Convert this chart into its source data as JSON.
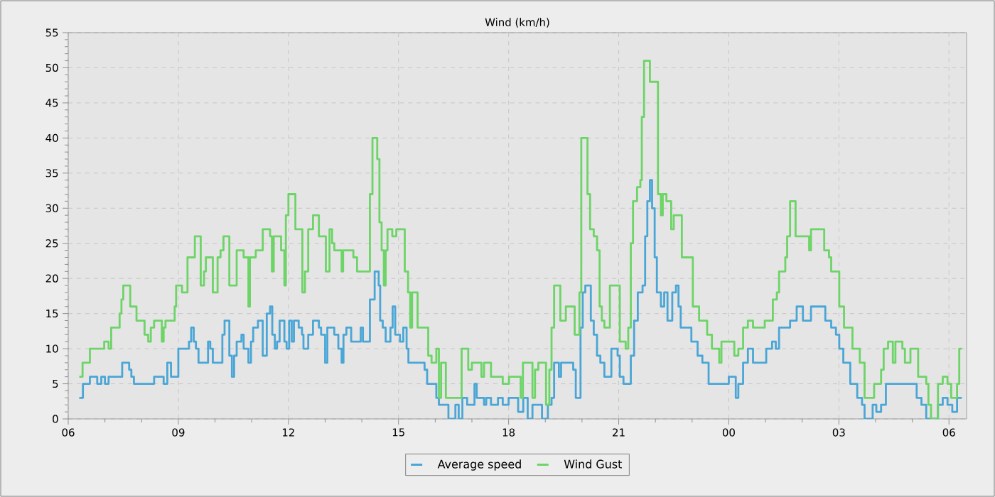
{
  "chart_data": {
    "type": "step",
    "title": "Wind (km/h)",
    "xlim": [
      6,
      30.48
    ],
    "ylim": [
      0,
      55
    ],
    "xticks": [
      {
        "value": 6,
        "label": "06"
      },
      {
        "value": 9,
        "label": "09"
      },
      {
        "value": 12,
        "label": "12"
      },
      {
        "value": 15,
        "label": "15"
      },
      {
        "value": 18,
        "label": "18"
      },
      {
        "value": 21,
        "label": "21"
      },
      {
        "value": 24,
        "label": "00"
      },
      {
        "value": 27,
        "label": "03"
      },
      {
        "value": 30,
        "label": "06"
      }
    ],
    "yticks": [
      0,
      5,
      10,
      15,
      20,
      25,
      30,
      35,
      40,
      45,
      50,
      55
    ],
    "grid": true,
    "legend": "bottom",
    "line_style": "solid",
    "marker": "none",
    "series": [
      {
        "name": "Average speed",
        "color": "#4aa6d6",
        "x": [
          6.3,
          6.4,
          6.59,
          6.79,
          6.9,
          7.0,
          7.1,
          7.47,
          7.66,
          7.72,
          7.79,
          8.34,
          8.6,
          8.7,
          8.8,
          9.0,
          9.29,
          9.35,
          9.42,
          9.48,
          9.55,
          9.81,
          9.87,
          9.94,
          10.2,
          10.26,
          10.39,
          10.46,
          10.52,
          10.59,
          10.72,
          10.78,
          10.91,
          10.98,
          11.04,
          11.17,
          11.3,
          11.41,
          11.5,
          11.56,
          11.63,
          11.69,
          11.76,
          11.89,
          11.95,
          12.02,
          12.09,
          12.15,
          12.28,
          12.37,
          12.41,
          12.54,
          12.67,
          12.83,
          12.89,
          13.0,
          13.06,
          13.25,
          13.36,
          13.45,
          13.5,
          13.58,
          13.71,
          13.97,
          14.03,
          14.22,
          14.35,
          14.46,
          14.5,
          14.57,
          14.65,
          14.78,
          14.84,
          14.91,
          15.04,
          15.13,
          15.22,
          15.27,
          15.71,
          15.78,
          16.03,
          16.1,
          16.36,
          16.55,
          16.64,
          16.74,
          16.87,
          17.07,
          17.13,
          17.33,
          17.39,
          17.52,
          17.71,
          17.84,
          18.0,
          18.26,
          18.4,
          18.52,
          18.65,
          18.91,
          19.07,
          19.17,
          19.24,
          19.37,
          19.43,
          19.76,
          19.83,
          19.96,
          20.02,
          20.09,
          20.24,
          20.32,
          20.41,
          20.5,
          20.61,
          20.8,
          20.97,
          21.03,
          21.13,
          21.33,
          21.42,
          21.52,
          21.65,
          21.72,
          21.78,
          21.85,
          21.91,
          21.98,
          22.04,
          22.15,
          22.24,
          22.33,
          22.46,
          22.56,
          22.63,
          22.69,
          22.98,
          23.15,
          23.28,
          23.45,
          24.0,
          24.19,
          24.26,
          24.39,
          24.52,
          24.66,
          25.02,
          25.18,
          25.28,
          25.37,
          25.67,
          25.85,
          26.02,
          26.24,
          26.63,
          26.79,
          26.92,
          27.01,
          27.12,
          27.31,
          27.5,
          27.63,
          27.7,
          27.92,
          28.02,
          28.15,
          28.28,
          29.12,
          29.25,
          29.38,
          29.7,
          29.83,
          29.96,
          30.09,
          30.22,
          30.35
        ],
        "values": [
          3,
          5,
          6,
          5,
          6,
          5,
          6,
          8,
          7,
          6,
          5,
          6,
          5,
          8,
          6,
          10,
          11,
          13,
          11,
          10,
          8,
          11,
          10,
          8,
          12,
          14,
          9,
          6,
          9,
          11,
          12,
          10,
          8,
          11,
          13,
          14,
          9,
          15,
          16,
          12,
          10,
          11,
          14,
          11,
          10,
          14,
          11,
          14,
          13,
          12,
          10,
          12,
          14,
          13,
          12,
          8,
          13,
          12,
          10,
          8,
          12,
          13,
          11,
          13,
          11,
          17,
          21,
          19,
          14,
          13,
          11,
          13,
          16,
          12,
          11,
          13,
          10,
          8,
          7,
          5,
          3,
          2,
          0,
          2,
          0,
          3,
          2,
          5,
          3,
          2,
          3,
          2,
          3,
          2,
          3,
          1,
          3,
          0,
          2,
          0,
          2,
          3,
          8,
          6,
          8,
          7,
          3,
          13,
          18,
          19,
          14,
          12,
          9,
          8,
          6,
          10,
          9,
          6,
          5,
          9,
          14,
          18,
          19,
          26,
          31,
          34,
          30,
          23,
          18,
          16,
          18,
          14,
          18,
          19,
          16,
          13,
          11,
          9,
          8,
          5,
          6,
          3,
          5,
          8,
          10,
          8,
          10,
          11,
          10,
          13,
          14,
          16,
          14,
          16,
          14,
          13,
          12,
          10,
          8,
          5,
          3,
          2,
          0,
          2,
          1,
          2,
          5,
          3,
          2,
          0,
          2,
          3,
          2,
          1,
          3,
          3
        ]
      },
      {
        "name": "Wind Gust",
        "color": "#6dd467",
        "x": [
          6.3,
          6.39,
          6.59,
          6.98,
          7.1,
          7.17,
          7.4,
          7.45,
          7.5,
          7.69,
          7.86,
          8.08,
          8.18,
          8.25,
          8.34,
          8.55,
          8.6,
          8.65,
          8.9,
          8.94,
          9.1,
          9.25,
          9.45,
          9.61,
          9.7,
          9.75,
          9.94,
          10.07,
          10.15,
          10.23,
          10.39,
          10.59,
          10.78,
          10.91,
          10.95,
          11.11,
          11.3,
          11.5,
          11.55,
          11.6,
          11.8,
          11.89,
          11.93,
          12.0,
          12.19,
          12.38,
          12.45,
          12.54,
          12.67,
          12.83,
          13.02,
          13.12,
          13.19,
          13.25,
          13.45,
          13.49,
          13.77,
          13.87,
          14.22,
          14.29,
          14.42,
          14.48,
          14.54,
          14.6,
          14.65,
          14.7,
          14.83,
          14.94,
          15.17,
          15.26,
          15.32,
          15.37,
          15.52,
          15.81,
          15.9,
          16.03,
          16.1,
          16.16,
          16.29,
          16.72,
          16.9,
          17.0,
          17.26,
          17.33,
          17.52,
          17.84,
          18.01,
          18.33,
          18.39,
          18.65,
          18.72,
          18.81,
          19.02,
          19.11,
          19.17,
          19.24,
          19.41,
          19.56,
          19.8,
          19.93,
          19.98,
          20.15,
          20.22,
          20.32,
          20.41,
          20.48,
          20.54,
          20.61,
          20.76,
          21.03,
          21.19,
          21.26,
          21.33,
          21.39,
          21.5,
          21.59,
          21.63,
          21.69,
          21.85,
          22.07,
          22.15,
          22.2,
          22.3,
          22.43,
          22.5,
          22.72,
          23.02,
          23.19,
          23.41,
          23.54,
          23.74,
          23.8,
          24.15,
          24.26,
          24.39,
          24.52,
          24.66,
          24.98,
          25.2,
          25.31,
          25.37,
          25.54,
          25.59,
          25.67,
          25.82,
          26.19,
          26.24,
          26.6,
          26.73,
          26.79,
          27.01,
          27.14,
          27.37,
          27.57,
          27.7,
          27.96,
          28.15,
          28.22,
          28.34,
          28.47,
          28.54,
          28.73,
          28.8,
          28.95,
          29.16,
          29.38,
          29.44,
          29.51,
          29.7,
          29.83,
          29.96,
          30.06,
          30.22,
          30.28,
          30.35
        ],
        "values": [
          6,
          8,
          10,
          11,
          10,
          13,
          15,
          17,
          19,
          16,
          14,
          12,
          11,
          13,
          14,
          11,
          13,
          14,
          16,
          19,
          18,
          23,
          26,
          19,
          21,
          23,
          18,
          23,
          24,
          26,
          19,
          24,
          23,
          16,
          23,
          24,
          27,
          26,
          21,
          26,
          24,
          19,
          29,
          32,
          27,
          18,
          21,
          27,
          29,
          26,
          21,
          27,
          25,
          24,
          21,
          24,
          23,
          21,
          32,
          40,
          37,
          28,
          24,
          19,
          24,
          27,
          26,
          27,
          21,
          18,
          13,
          18,
          13,
          9,
          8,
          10,
          3,
          8,
          3,
          10,
          7,
          8,
          6,
          8,
          6,
          5,
          6,
          3,
          8,
          3,
          7,
          8,
          2,
          7,
          13,
          19,
          14,
          16,
          12,
          18,
          40,
          32,
          27,
          26,
          24,
          16,
          14,
          13,
          19,
          11,
          10,
          13,
          25,
          31,
          33,
          34,
          43,
          51,
          48,
          32,
          29,
          32,
          31,
          27,
          29,
          23,
          16,
          14,
          12,
          10,
          8,
          11,
          9,
          10,
          13,
          14,
          13,
          14,
          17,
          18,
          21,
          23,
          26,
          31,
          26,
          24,
          27,
          24,
          23,
          21,
          16,
          13,
          10,
          8,
          3,
          5,
          7,
          10,
          11,
          8,
          11,
          10,
          8,
          10,
          6,
          5,
          2,
          0,
          5,
          6,
          5,
          3,
          5,
          10,
          10
        ]
      }
    ]
  }
}
